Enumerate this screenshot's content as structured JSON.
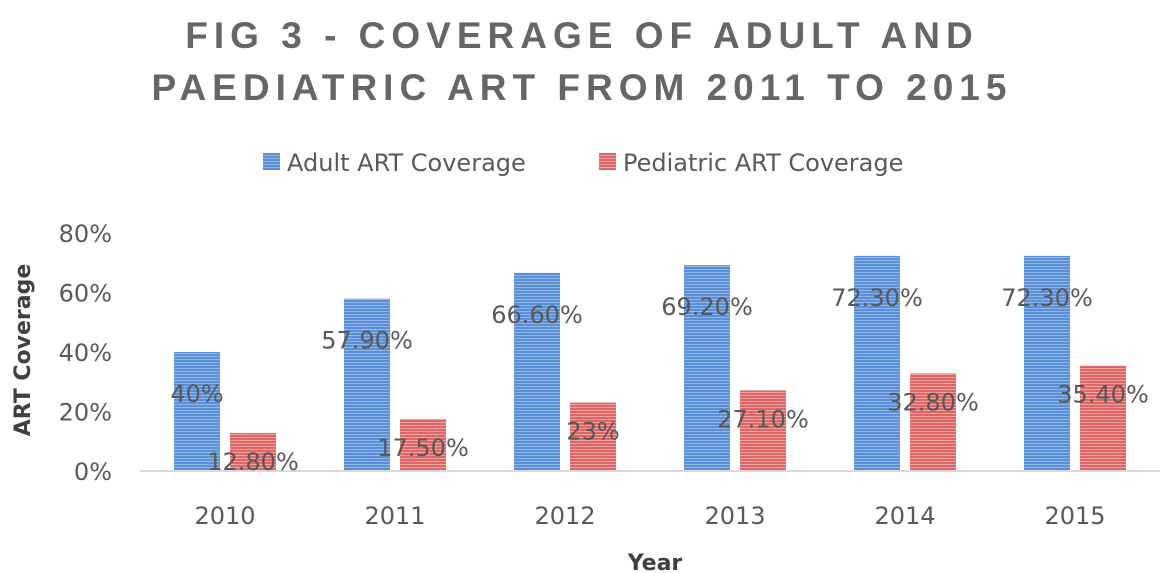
{
  "chart_data": {
    "type": "bar",
    "title": [
      "FIG 3 - COVERAGE OF ADULT AND",
      "PAEDIATRIC ART FROM 2011 TO 2015"
    ],
    "xlabel": "Year",
    "ylabel": "ART Coverage",
    "categories": [
      "2010",
      "2011",
      "2012",
      "2013",
      "2014",
      "2015"
    ],
    "ylim": [
      0,
      80
    ],
    "yticks": [
      {
        "value": 0,
        "label": "0%"
      },
      {
        "value": 20,
        "label": "20%"
      },
      {
        "value": 40,
        "label": "40%"
      },
      {
        "value": 60,
        "label": "60%"
      },
      {
        "value": 80,
        "label": "80%"
      }
    ],
    "grid": false,
    "legend_position": "top",
    "series": [
      {
        "name": "Adult ART Coverage",
        "color": "#5b8fd6",
        "values": [
          40,
          57.9,
          66.6,
          69.2,
          72.3,
          72.3
        ],
        "labels": [
          "40%",
          "57.90%",
          "66.60%",
          "69.20%",
          "72.30%",
          "72.30%"
        ]
      },
      {
        "name": "Pediatric ART Coverage",
        "color": "#e06666",
        "values": [
          12.8,
          17.5,
          23,
          27.1,
          32.8,
          35.4
        ],
        "labels": [
          "12.80%",
          "17.50%",
          "23%",
          "27.10%",
          "32.80%",
          "35.40%"
        ]
      }
    ]
  },
  "colors": {
    "title": "#666666",
    "text": "#595959",
    "axis_line": "#d9d9d9",
    "axis_title": "#404040"
  }
}
